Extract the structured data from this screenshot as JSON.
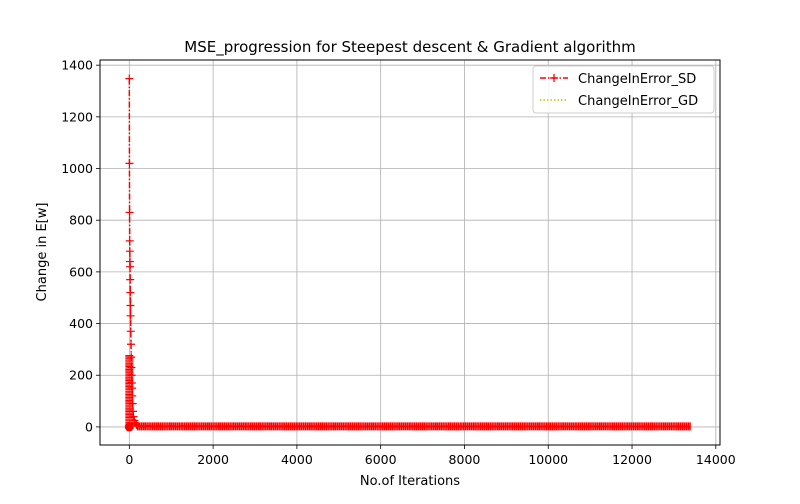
{
  "chart_data": {
    "type": "line",
    "title": "MSE_progression for Steepest descent & Gradient algorithm",
    "xlabel": "No.of Iterations",
    "ylabel": "Change in E[w]",
    "xlim": [
      -700,
      14100
    ],
    "ylim": [
      -70,
      1420
    ],
    "xticks": [
      0,
      2000,
      4000,
      6000,
      8000,
      10000,
      12000,
      14000
    ],
    "xtick_labels": [
      "0",
      "2000",
      "4000",
      "6000",
      "8000",
      "10000",
      "12000",
      "14000"
    ],
    "yticks": [
      0,
      200,
      400,
      600,
      800,
      1000,
      1200,
      1400
    ],
    "ytick_labels": [
      "0",
      "200",
      "400",
      "600",
      "800",
      "1000",
      "1200",
      "1400"
    ],
    "grid": true,
    "legend_position": "top-right",
    "series": [
      {
        "name": "ChangeInError_SD",
        "color": "#ff0000",
        "line_style": "dash-dot",
        "marker": "plus",
        "x_range": [
          0,
          13400
        ],
        "x": [
          0,
          3,
          6,
          9,
          12,
          15,
          18,
          21,
          24,
          27,
          30,
          35,
          40,
          45,
          50,
          55,
          60,
          65,
          70,
          80,
          90,
          100,
          120,
          140,
          170,
          200
        ],
        "y": [
          1348,
          1020,
          830,
          720,
          680,
          640,
          620,
          570,
          520,
          470,
          430,
          370,
          320,
          270,
          230,
          200,
          170,
          150,
          120,
          90,
          60,
          40,
          25,
          15,
          8,
          4
        ],
        "tail_value": 2
      },
      {
        "name": "ChangeInError_GD",
        "color": "#bfbf00",
        "line_style": "dotted",
        "marker": "none",
        "x_range": [
          0,
          13400
        ],
        "x": [
          0,
          10,
          20,
          30,
          40,
          60,
          80,
          100,
          130,
          160,
          200
        ],
        "y": [
          150,
          110,
          80,
          60,
          45,
          30,
          20,
          12,
          8,
          5,
          3
        ],
        "tail_value": 1
      }
    ]
  }
}
